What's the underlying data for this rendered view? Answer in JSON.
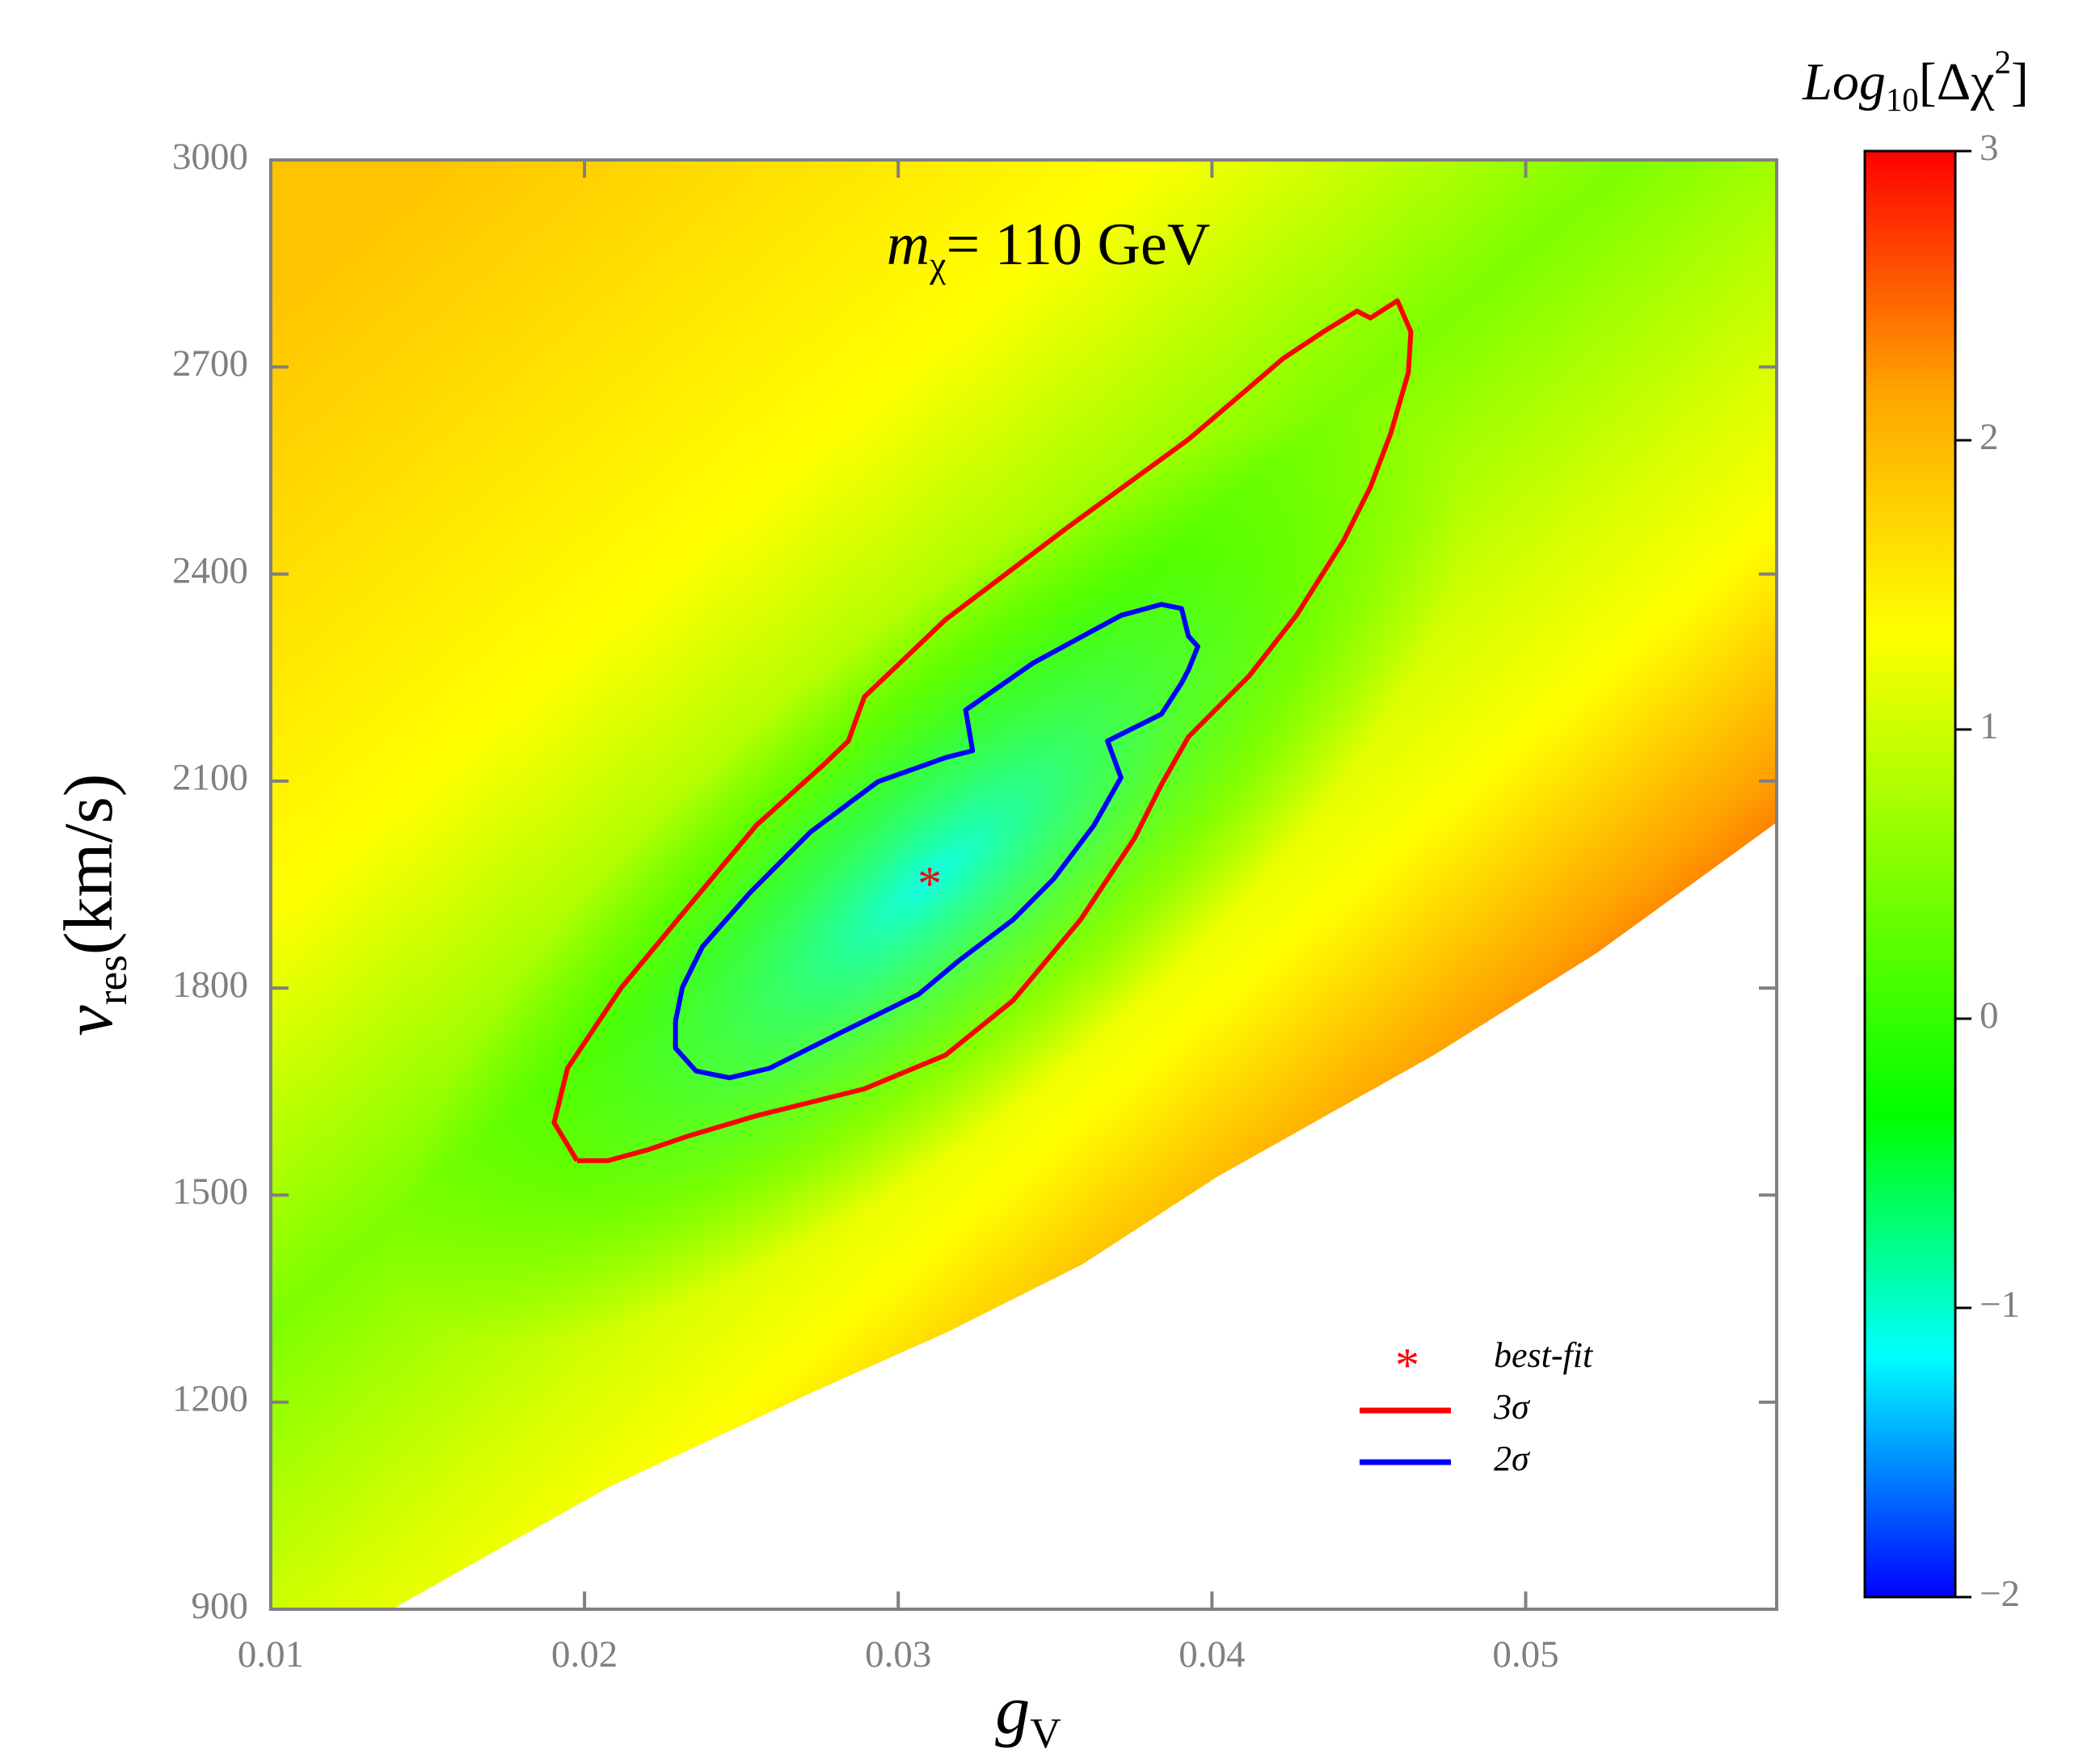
{
  "chart_data": {
    "type": "contour",
    "annotation": {
      "symbol": "m",
      "subscript": "χ",
      "text": "= 110 GeV"
    },
    "x_label": {
      "symbol": "g",
      "subscript": "V"
    },
    "y_label": {
      "symbol": "v",
      "subscript": "res",
      "unit": "(km/s)"
    },
    "xlim": [
      0.01,
      0.058
    ],
    "xticks": [
      0.01,
      0.02,
      0.03,
      0.04,
      0.05
    ],
    "ylim": [
      900,
      3000
    ],
    "yticks": [
      900,
      1200,
      1500,
      1800,
      2100,
      2400,
      2700,
      3000
    ],
    "series": [
      {
        "name": "best-fit",
        "marker": "*",
        "color": "#ff0000",
        "x": [
          0.031
        ],
        "y": [
          1960
        ]
      },
      {
        "name": "3σ",
        "color": "#ff0000",
        "x": [
          0.01976,
          0.01903,
          0.01946,
          0.02118,
          0.02333,
          0.02548,
          0.02763,
          0.02841,
          0.02892,
          0.03151,
          0.03538,
          0.03925,
          0.04226,
          0.04355,
          0.04462,
          0.04505,
          0.04591,
          0.04634,
          0.04626,
          0.0457,
          0.04505,
          0.04419,
          0.04269,
          0.04118,
          0.03925,
          0.03839,
          0.03753,
          0.03581,
          0.03366,
          0.03151,
          0.02892,
          0.02548,
          0.02333,
          0.02204,
          0.02075,
          0.01976
        ],
        "y": [
          1550,
          1605,
          1684,
          1801,
          1919,
          2036,
          2124,
          2158,
          2222,
          2334,
          2467,
          2595,
          2712,
          2751,
          2781,
          2771,
          2796,
          2751,
          2692,
          2604,
          2526,
          2448,
          2340,
          2252,
          2164,
          2095,
          2017,
          1899,
          1782,
          1703,
          1654,
          1615,
          1586,
          1566,
          1550,
          1550
        ]
      },
      {
        "name": "2σ",
        "color": "#0000ff",
        "x": [
          0.0229,
          0.02312,
          0.02376,
          0.02527,
          0.0272,
          0.02935,
          0.03151,
          0.03237,
          0.03215,
          0.0343,
          0.0371,
          0.03839,
          0.03903,
          0.03925,
          0.03955,
          0.03925,
          0.03903,
          0.03839,
          0.03667,
          0.0371,
          0.03624,
          0.03495,
          0.03366,
          0.03194,
          0.03065,
          0.02806,
          0.02591,
          0.02462,
          0.02355,
          0.0229,
          0.0229
        ],
        "y": [
          1752,
          1801,
          1860,
          1938,
          2026,
          2099,
          2134,
          2144,
          2203,
          2271,
          2340,
          2356,
          2350,
          2310,
          2295,
          2261,
          2242,
          2197,
          2158,
          2105,
          2036,
          1958,
          1899,
          1840,
          1791,
          1733,
          1684,
          1670,
          1680,
          1713,
          1752
        ]
      }
    ],
    "colorbar": {
      "label": {
        "symbol": "Log",
        "subscript": "10",
        "text": "[Δχ",
        "superscript": "2",
        "close": "]"
      },
      "lim": [
        -2,
        3
      ],
      "ticks": [
        {
          "value": -2,
          "label": "−2"
        },
        {
          "value": -1,
          "label": "−1"
        },
        0,
        1,
        2,
        3
      ],
      "colors": [
        "#0000ff",
        "#00ffff",
        "#00ff00",
        "#80ff00",
        "#ffff00",
        "#ffa500",
        "#ff0000"
      ]
    }
  }
}
